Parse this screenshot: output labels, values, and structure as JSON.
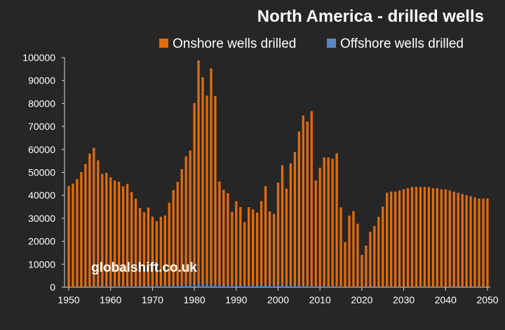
{
  "colors": {
    "background": "#262626",
    "text": "#ffffff",
    "axis": "#d9d9d9",
    "onshore": "#e46c0a",
    "offshore": "#5b86c5"
  },
  "chart_data": {
    "type": "bar",
    "stacked": true,
    "title": "North America - drilled wells",
    "xlabel": "",
    "ylabel": "",
    "ylim": [
      0,
      100000
    ],
    "yticks": [
      0,
      10000,
      20000,
      30000,
      40000,
      50000,
      60000,
      70000,
      80000,
      90000,
      100000
    ],
    "xticks": [
      1950,
      1960,
      1970,
      1980,
      1990,
      2000,
      2010,
      2020,
      2030,
      2040,
      2050
    ],
    "legend_position": "top-right",
    "watermark": "globalshift.co.uk",
    "x": [
      1950,
      1951,
      1952,
      1953,
      1954,
      1955,
      1956,
      1957,
      1958,
      1959,
      1960,
      1961,
      1962,
      1963,
      1964,
      1965,
      1966,
      1967,
      1968,
      1969,
      1970,
      1971,
      1972,
      1973,
      1974,
      1975,
      1976,
      1977,
      1978,
      1979,
      1980,
      1981,
      1982,
      1983,
      1984,
      1985,
      1986,
      1987,
      1988,
      1989,
      1990,
      1991,
      1992,
      1993,
      1994,
      1995,
      1996,
      1997,
      1998,
      1999,
      2000,
      2001,
      2002,
      2003,
      2004,
      2005,
      2006,
      2007,
      2008,
      2009,
      2010,
      2011,
      2012,
      2013,
      2014,
      2015,
      2016,
      2017,
      2018,
      2019,
      2020,
      2021,
      2022,
      2023,
      2024,
      2025,
      2026,
      2027,
      2028,
      2029,
      2030,
      2031,
      2032,
      2033,
      2034,
      2035,
      2036,
      2037,
      2038,
      2039,
      2040,
      2041,
      2042,
      2043,
      2044,
      2045,
      2046,
      2047,
      2048,
      2049,
      2050
    ],
    "series": [
      {
        "name": "Onshore wells drilled",
        "color": "#e46c0a",
        "values": [
          44000,
          45000,
          47000,
          50000,
          53500,
          58000,
          60500,
          55000,
          49000,
          49500,
          47500,
          46000,
          45500,
          43500,
          44500,
          41000,
          38000,
          34000,
          32000,
          34000,
          30000,
          28000,
          30000,
          30500,
          36000,
          41500,
          45000,
          50500,
          56000,
          58500,
          79000,
          97500,
          90000,
          82000,
          94000,
          82000,
          45000,
          41500,
          40000,
          32000,
          36500,
          34000,
          27500,
          34000,
          33000,
          31500,
          36500,
          43000,
          32000,
          31000,
          44500,
          52000,
          42000,
          53000,
          58000,
          67000,
          74000,
          71500,
          76000,
          46000,
          51500,
          56000,
          56000,
          55500,
          58000,
          34500,
          19500,
          31000,
          33000,
          27500,
          14000,
          18000,
          24000,
          26500,
          30500,
          35000,
          41000,
          41500,
          41500,
          42000,
          42500,
          43000,
          43500,
          43500,
          43500,
          43500,
          43500,
          43000,
          43000,
          42500,
          42500,
          42000,
          41500,
          41000,
          40500,
          40000,
          39500,
          39000,
          38500,
          38500,
          38500
        ]
      },
      {
        "name": "Offshore wells drilled",
        "color": "#5b86c5",
        "values": [
          80,
          90,
          100,
          120,
          150,
          180,
          220,
          260,
          300,
          320,
          350,
          380,
          400,
          420,
          450,
          480,
          500,
          550,
          600,
          650,
          700,
          700,
          650,
          700,
          750,
          800,
          850,
          900,
          1000,
          1100,
          1200,
          1300,
          1400,
          1400,
          1300,
          1200,
          1000,
          900,
          900,
          850,
          900,
          900,
          800,
          850,
          900,
          950,
          1000,
          1050,
          1000,
          900,
          1000,
          1050,
          950,
          900,
          850,
          800,
          750,
          700,
          650,
          500,
          550,
          500,
          450,
          400,
          350,
          250,
          150,
          150,
          150,
          140,
          100,
          100,
          110,
          110,
          120,
          120,
          130,
          130,
          130,
          130,
          130,
          130,
          130,
          130,
          130,
          130,
          130,
          130,
          120,
          120,
          120,
          120,
          110,
          110,
          110,
          100,
          100,
          100,
          100,
          100,
          100
        ]
      }
    ]
  }
}
